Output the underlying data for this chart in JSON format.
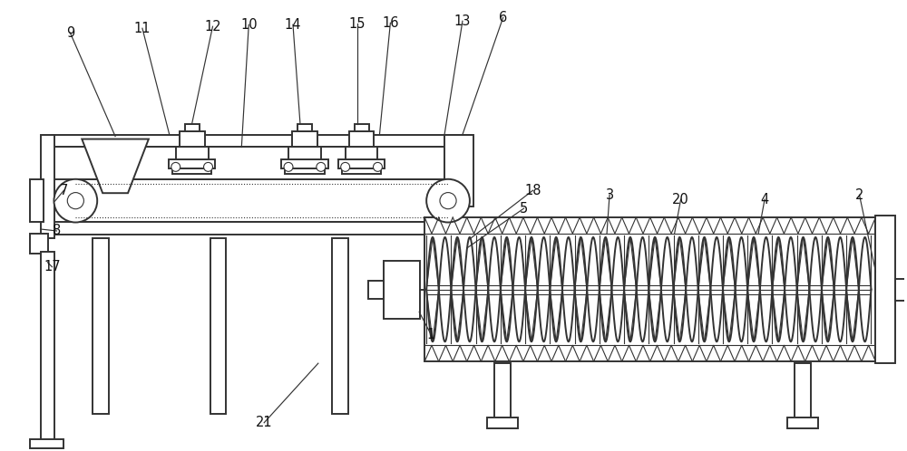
{
  "bg_color": "#ffffff",
  "line_color": "#333333",
  "line_width": 1.4,
  "thin_line": 0.8,
  "label_fontsize": 10.5,
  "label_color": "#111111"
}
